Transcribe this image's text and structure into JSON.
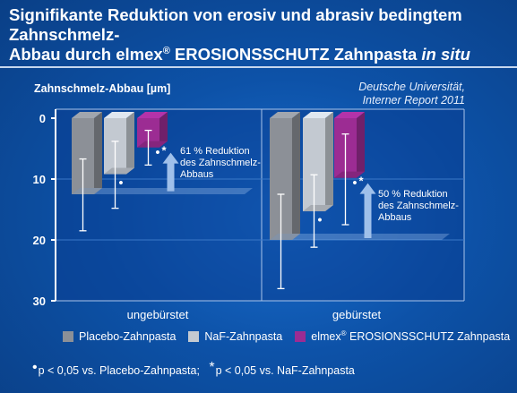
{
  "title": {
    "part1": "Signifikante Reduktion von erosiv und abrasiv bedingtem Zahnschmelz-",
    "part2": "Abbau durch elmex",
    "reg": "®",
    "part3": " EROSIONSSCHUTZ Zahnpasta ",
    "italic": "in situ"
  },
  "source": {
    "line1": "Deutsche Universität,",
    "line2": "Interner Report 2011"
  },
  "colors": {
    "placebo": "#8c9097",
    "naf": "#c3c9d1",
    "elmex": "#9c2c93",
    "arrow": "#9fc0ea"
  },
  "chart_data": {
    "type": "bar",
    "ylabel": "Zahnschmelz-Abbau [µm]",
    "ylim": [
      0,
      30
    ],
    "y_ticks": [
      "0",
      "10",
      "20",
      "30"
    ],
    "orientation": "downward",
    "categories": [
      "ungebürstet",
      "gebürstet"
    ],
    "series": [
      {
        "name": "Placebo-Zahnpasta",
        "values": [
          12.5,
          20.0
        ],
        "error": [
          [
            6.7,
            18.5
          ],
          [
            12.5,
            28.0
          ]
        ]
      },
      {
        "name": "NaF-Zahnpasta",
        "values": [
          9.2,
          15.3
        ],
        "error": [
          [
            3.8,
            14.8
          ],
          [
            9.3,
            21.2
          ]
        ]
      },
      {
        "name": "elmex® EROSIONSSCHUTZ Zahnpasta",
        "values": [
          4.8,
          9.8
        ],
        "error": [
          [
            2.0,
            7.7
          ],
          [
            2.6,
            17.5
          ]
        ]
      }
    ],
    "annotations": [
      {
        "category": "ungebürstet",
        "line1": "61 % Reduktion",
        "line2": "des Zahnschmelz-",
        "line3": "Abbaus"
      },
      {
        "category": "gebürstet",
        "line1": "50 % Reduktion",
        "line2": "des Zahnschmelz-",
        "line3": "Abbaus"
      }
    ],
    "marks": {
      "dot": "•",
      "star": "*"
    }
  },
  "legend": {
    "placebo": "Placebo-Zahnpasta",
    "naf": "NaF-Zahnpasta",
    "elmex_a": "elmex",
    "elmex_reg": "®",
    "elmex_b": " EROSIONSSCHUTZ Zahnpasta"
  },
  "footnote": {
    "dot_sym": "•",
    "dot_text": "p < 0,05 vs. Placebo-Zahnpasta;",
    "star_sym": "*",
    "star_text": "p < 0,05 vs. NaF-Zahnpasta"
  }
}
